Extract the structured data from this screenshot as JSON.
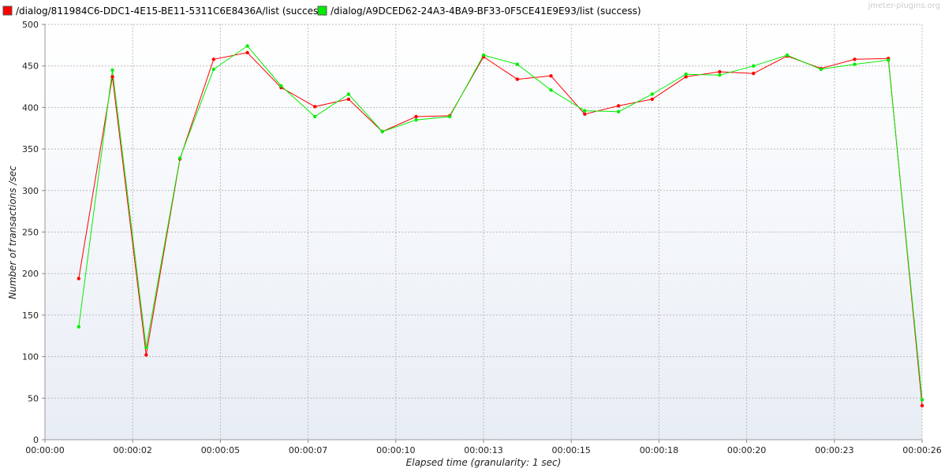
{
  "watermark": "jmeter-plugins.org",
  "chart_data": {
    "type": "line",
    "xlabel": "Elapsed time (granularity: 1 sec)",
    "ylabel": "Number of transactions /sec",
    "ylim": [
      0,
      500
    ],
    "y_ticks": [
      0,
      50,
      100,
      150,
      200,
      250,
      300,
      350,
      400,
      450,
      500
    ],
    "xlim": [
      0,
      26
    ],
    "x_ticks": [
      {
        "value": 0,
        "label": "00:00:00"
      },
      {
        "value": 2.6,
        "label": "00:00:02"
      },
      {
        "value": 5.2,
        "label": "00:00:05"
      },
      {
        "value": 7.8,
        "label": "00:00:07"
      },
      {
        "value": 10.4,
        "label": "00:00:10"
      },
      {
        "value": 13,
        "label": "00:00:13"
      },
      {
        "value": 15.6,
        "label": "00:00:15"
      },
      {
        "value": 18.2,
        "label": "00:00:18"
      },
      {
        "value": 20.8,
        "label": "00:00:20"
      },
      {
        "value": 23.4,
        "label": "00:00:23"
      },
      {
        "value": 26,
        "label": "00:00:26"
      }
    ],
    "grid": true,
    "legend_position": "top-left",
    "x": [
      1,
      2,
      3,
      4,
      5,
      6,
      7,
      8,
      9,
      10,
      11,
      12,
      13,
      14,
      15,
      16,
      17,
      18,
      19,
      20,
      21,
      22,
      23,
      24,
      25,
      26
    ],
    "series": [
      {
        "name": "/dialog/811984C6-DDC1-4E15-BE11-5311C6E8436A/list (success)",
        "color": "#ff0000",
        "values": [
          194,
          437,
          102,
          338,
          458,
          466,
          424,
          401,
          410,
          371,
          389,
          390,
          461,
          434,
          438,
          392,
          402,
          410,
          437,
          443,
          441,
          462,
          447,
          458,
          459,
          41
        ]
      },
      {
        "name": "/dialog/A9DCED62-24A3-4BA9-BF33-0F5CE41E9E93/list (success)",
        "color": "#00ee00",
        "values": [
          136,
          445,
          111,
          339,
          446,
          474,
          426,
          389,
          416,
          371,
          385,
          389,
          463,
          452,
          421,
          396,
          395,
          416,
          440,
          439,
          450,
          463,
          446,
          452,
          457,
          48
        ]
      }
    ]
  }
}
